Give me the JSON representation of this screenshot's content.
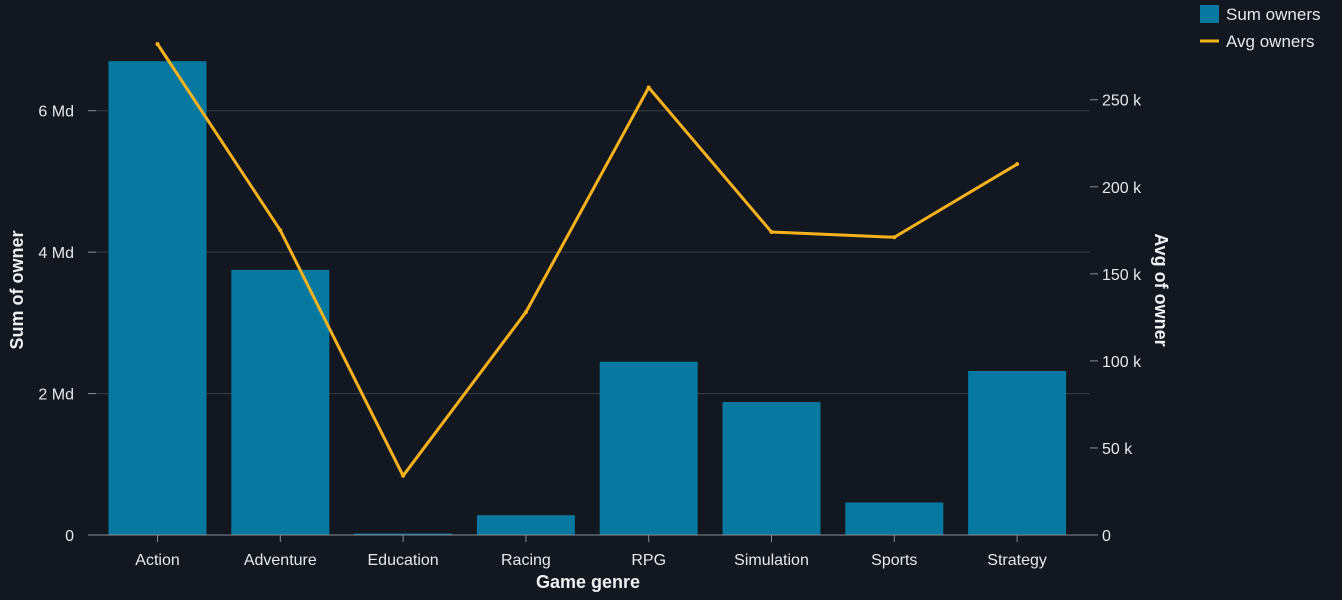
{
  "chart_data": {
    "type": "bar",
    "xlabel": "Game genre",
    "ylabel": "Sum of owner",
    "y2label": "Avg of owner",
    "categories": [
      "Action",
      "Adventure",
      "Education",
      "Racing",
      "RPG",
      "Simulation",
      "Sports",
      "Strategy"
    ],
    "series": [
      {
        "name": "Sum owners",
        "type": "bar",
        "axis": "left",
        "color": "#0779a0",
        "values": [
          6700000000,
          3750000000,
          20000000,
          280000000,
          2450000000,
          1880000000,
          460000000,
          2320000000
        ]
      },
      {
        "name": "Avg owners",
        "type": "line",
        "axis": "right",
        "color": "#f7b21c",
        "values": [
          282000,
          175000,
          34000,
          128000,
          257000,
          174000,
          171000,
          213000
        ]
      }
    ],
    "ylim": [
      0,
      7000000000
    ],
    "y2lim": [
      0,
      282000
    ],
    "y_ticks": [
      {
        "value": 0,
        "label": "0"
      },
      {
        "value": 2000000000,
        "label": "2 Md"
      },
      {
        "value": 4000000000,
        "label": "4 Md"
      },
      {
        "value": 6000000000,
        "label": "6 Md"
      }
    ],
    "y2_ticks": [
      {
        "value": 0,
        "label": "0"
      },
      {
        "value": 50000,
        "label": "50 k"
      },
      {
        "value": 100000,
        "label": "100 k"
      },
      {
        "value": 150000,
        "label": "150 k"
      },
      {
        "value": 200000,
        "label": "200 k"
      },
      {
        "value": 250000,
        "label": "250 k"
      }
    ],
    "grid": true,
    "legend_position": "top-right"
  },
  "colors": {
    "background": "#13171f",
    "grid": "#3a3e44",
    "axis": "#8a8f96"
  }
}
